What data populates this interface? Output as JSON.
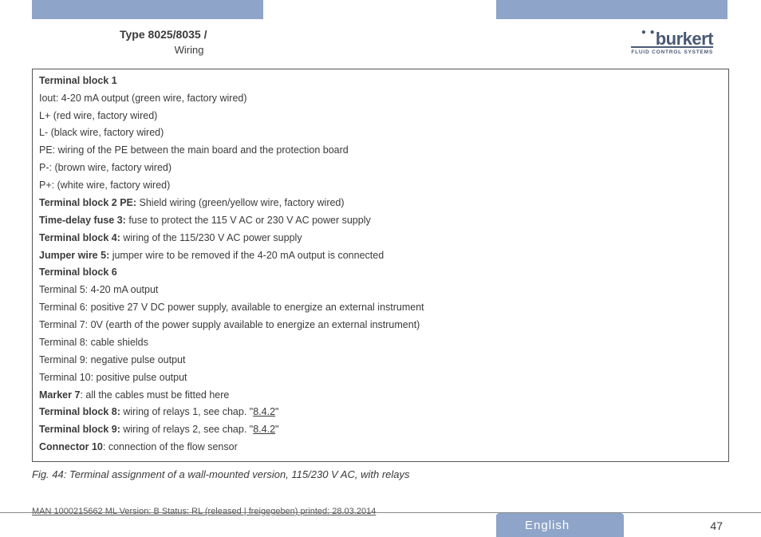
{
  "colors": {
    "tab_bg": "#8ea4c8",
    "text": "#3a3a3a",
    "logo": "#4a5a75",
    "border": "#555555",
    "rule": "#888888",
    "lang_text": "#ffffff"
  },
  "header": {
    "line1": "Type 8025/8035 /",
    "line2": "Wiring",
    "logo_name": "burkert",
    "logo_sub": "FLUID CONTROL SYSTEMS"
  },
  "box": {
    "tb1_title": "Terminal block 1",
    "tb1_lines": [
      "Iout: 4-20 mA output (green wire, factory wired)",
      "L+ (red wire, factory wired)",
      "L- (black wire, factory wired)",
      "PE: wiring of the PE between the main board and the protection board",
      "P-: (brown wire, factory wired)",
      "P+: (white wire, factory wired)"
    ],
    "tb2_label": "Terminal block 2 PE:",
    "tb2_text": " Shield wiring (green/yellow wire, factory wired)",
    "fuse3_label": "Time-delay fuse 3:",
    "fuse3_text": " fuse to protect the 115 V AC or 230 V AC power supply",
    "tb4_label": "Terminal block 4:",
    "tb4_text": " wiring of the 115/230 V AC power supply",
    "jw5_label": "Jumper wire 5:",
    "jw5_text": " jumper wire to be removed if the 4-20 mA output is connected",
    "tb6_title": "Terminal block 6",
    "tb6_lines": [
      "Terminal 5: 4-20 mA output",
      "Terminal 6: positive 27 V DC power supply, available to energize an external instrument",
      "Terminal 7: 0V (earth of the power supply available to energize an external instrument)",
      "Terminal 8: cable shields",
      "Terminal 9: negative pulse output",
      "Terminal 10: positive pulse output"
    ],
    "m7_label": "Marker 7",
    "m7_text": ": all the cables must be fitted here",
    "tb8_label": "Terminal block 8:",
    "tb8_text_a": " wiring of relays 1, see chap. \"",
    "tb8_ref": "8.4.2",
    "tb8_text_b": "\"",
    "tb9_label": "Terminal block 9:",
    "tb9_text_a": " wiring of relays 2, see chap. \"",
    "tb9_ref": "8.4.2",
    "tb9_text_b": "\"",
    "c10_label": "Connector 10",
    "c10_text": ": connection of the flow sensor"
  },
  "caption": "Fig. 44:   Terminal assignment of a wall-mounted version, 115/230 V AC, with relays",
  "footer_meta": "MAN  1000215662  ML  Version: B Status: RL (released | freigegeben)  printed: 28.03.2014",
  "language": "English",
  "page_number": "47"
}
